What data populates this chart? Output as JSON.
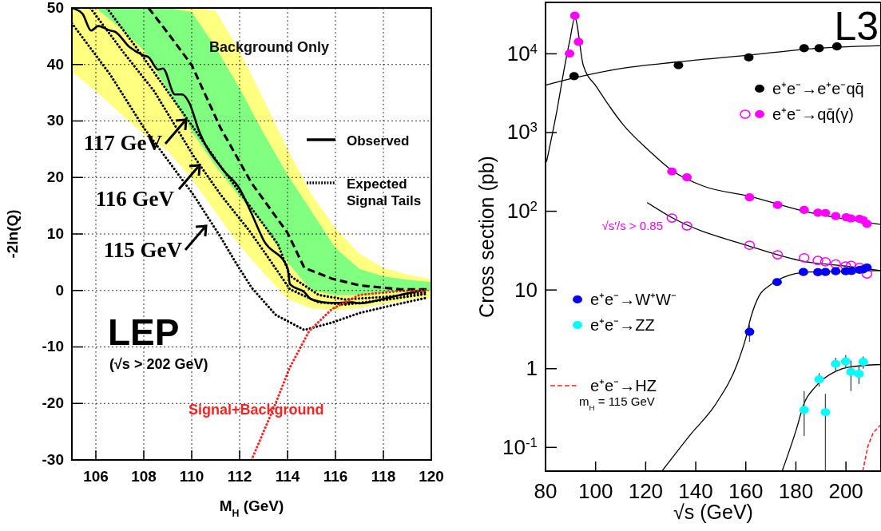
{
  "chart_data": [
    {
      "type": "line",
      "xlabel": "M$_{H}$ (GeV)",
      "ylabel": "-2ln(Q)",
      "xlim": [
        105,
        120
      ],
      "xticks": [
        106,
        108,
        110,
        112,
        114,
        116,
        118,
        120
      ],
      "ylim": [
        -30,
        50
      ],
      "yticks": [
        -30,
        -20,
        -10,
        0,
        10,
        20,
        30,
        40,
        50
      ],
      "grid": true,
      "legend": "right",
      "annotations": [
        "LEP",
        "(√s > 202 GeV)",
        "117 GeV",
        "116 GeV",
        "115 GeV"
      ],
      "series": [
        {
          "color": "#ffff80",
          "x": [
            105,
            106,
            107,
            108,
            109,
            110,
            111,
            112,
            113,
            114,
            115,
            116,
            117,
            118,
            119,
            120
          ],
          "lower": [
            38.7,
            35.3,
            31.4,
            27.7,
            24.7,
            19.8,
            13.8,
            8,
            3.1,
            -1.5,
            -3.2,
            -3.5,
            -3.1,
            -2.4,
            -1.7,
            -1.2
          ],
          "upper": [
            50,
            50,
            50,
            50,
            50,
            50,
            49.5,
            42.3,
            33.8,
            25,
            17,
            11,
            6.5,
            4,
            2.8,
            2
          ],
          "values": [
            null,
            null,
            null,
            null,
            null,
            null,
            null,
            null,
            null,
            null,
            null,
            null,
            null,
            null,
            null,
            null
          ]
        },
        {
          "color": "#80ff80",
          "x": [
            106,
            107,
            108,
            109,
            110,
            111,
            112,
            113,
            114,
            115,
            116,
            117,
            118,
            119,
            120
          ],
          "lower": [
            50,
            46.5,
            42.5,
            35.5,
            28.2,
            22,
            16.6,
            11.5,
            5,
            0,
            -0.8,
            -0.8,
            -0.4,
            -0.2,
            0
          ],
          "upper": [
            50,
            50,
            50,
            50,
            49.3,
            43,
            35.8,
            27.8,
            20.5,
            14,
            7.5,
            3.8,
            2.5,
            1.9,
            1.5
          ],
          "values": [
            null,
            null,
            null,
            null,
            null,
            null,
            null,
            null,
            null,
            null,
            null,
            null,
            null,
            null,
            null
          ]
        },
        {
          "name": "Background Only",
          "color": "#000000",
          "line_style": "dashed",
          "x": [
            108.2,
            109,
            110,
            111.2,
            112.5,
            114,
            114.7,
            115.85,
            117,
            118.7,
            119.8
          ],
          "values": [
            50,
            45.6,
            39.9,
            28.8,
            19,
            10.2,
            4.0,
            2.1,
            0.9,
            0.2,
            0.2
          ]
        },
        {
          "name": "Expected Signal Tails",
          "color": "#000000",
          "line_style": "dotted",
          "x": [
            105,
            106.6,
            108,
            110.06,
            111.2,
            111.8,
            112.5,
            113.5,
            114.7,
            115.85,
            117,
            118.2,
            119.8
          ],
          "values": [
            47.3,
            38.2,
            28.8,
            17,
            9.5,
            5.2,
            0.5,
            -4.3,
            -7,
            -5.7,
            -4,
            -2.8,
            -1.3
          ]
        },
        {
          "color": "#000000",
          "line_style": "dotted",
          "x": [
            105.77,
            107.16,
            108.43,
            110.06,
            111.2,
            112.4,
            113,
            114.1,
            115.3,
            116.4,
            118.2,
            119.8
          ],
          "values": [
            50,
            42.1,
            35.3,
            23.9,
            17,
            10.6,
            7,
            0.2,
            -2.1,
            -2.5,
            -1.6,
            -0.6
          ]
        },
        {
          "color": "#000000",
          "line_style": "dotted",
          "x": [
            106.46,
            107.74,
            108.9,
            110.06,
            111.2,
            112.4,
            113.6,
            114.1,
            115.3,
            116.4,
            118.2,
            119.8
          ],
          "values": [
            50,
            42.7,
            35.8,
            28.9,
            22,
            15.1,
            8.2,
            2.6,
            -0.8,
            -1.6,
            -1.1,
            -0.3
          ]
        },
        {
          "name": "Observed",
          "color": "#000000",
          "line_style": "solid",
          "x": [
            105,
            105.44,
            105.8,
            106.1,
            106.6,
            106.8,
            107.4,
            108,
            108.2,
            108.6,
            108.8,
            109.3,
            109.6,
            109.9,
            110.3,
            111.3,
            112,
            112.5,
            113,
            114,
            114.1,
            114.7,
            115,
            115.85,
            116.7,
            117,
            117.9,
            118.7,
            119.5,
            119.8
          ],
          "values": [
            50,
            49,
            46,
            46.8,
            46,
            45.8,
            43.1,
            41.6,
            41.3,
            39.1,
            39.3,
            34.7,
            34.7,
            33.2,
            28.3,
            21.4,
            18,
            13.6,
            8.9,
            4,
            1.1,
            -0.3,
            -1.6,
            -2.2,
            -2.1,
            -2.3,
            -1.6,
            -0.8,
            -0.1,
            0.1
          ]
        },
        {
          "name": "Signal+Background",
          "color": "#ff2020",
          "line_style": "dotted",
          "x": [
            112.5,
            113.5,
            114.1,
            114.9,
            115.85,
            117,
            118.7,
            119.8
          ],
          "values": [
            -30,
            -20,
            -13.6,
            -7.2,
            -3.3,
            -0.8,
            -0.1,
            0
          ]
        }
      ]
    },
    {
      "type": "scatter",
      "xlabel": "√s (GeV)",
      "ylabel": "Cross section (pb)",
      "log": "y",
      "xlim": [
        80,
        214
      ],
      "xticks": [
        80,
        100,
        120,
        140,
        160,
        180,
        200
      ],
      "ylim": [
        0.05,
        45000
      ],
      "yticks": [
        {
          "value": 0.1,
          "label": "10$^{-1}$"
        },
        1,
        10,
        {
          "value": 100,
          "label": "10$^{2}$"
        },
        {
          "value": 1000,
          "label": "10$^{3}$"
        },
        {
          "value": 10000,
          "label": "10$^{4}$"
        }
      ],
      "legend": "right",
      "annotations": [
        "L3",
        "m$_{H}$ = 115 GeV"
      ],
      "series": [
        {
          "type": "line",
          "color": "#000000",
          "line_style": "solid",
          "x": [
            80,
            91,
            110,
            133,
            161,
            183,
            214
          ],
          "values": [
            4000,
            4900,
            6500,
            7900,
            9600,
            11400,
            12700
          ]
        },
        {
          "type": "line",
          "color": "#000000",
          "line_style": "solid",
          "x": [
            80.4,
            84.5,
            87.7,
            89.8,
            91.7,
            95.1,
            100.4,
            111,
            121.7,
            130.5,
            143,
            161.5,
            183.3,
            214
          ],
          "values": [
            424,
            1860,
            7100,
            15400,
            28700,
            7100,
            3800,
            1260,
            575,
            330,
            209,
            155,
            100,
            68
          ]
        },
        {
          "type": "line",
          "color": "#000000",
          "line_style": "solid",
          "x": [
            120.6,
            130.5,
            161.5,
            183.3,
            200,
            214
          ],
          "values": [
            129,
            83,
            36,
            23,
            20.1,
            17.6
          ]
        },
        {
          "type": "line",
          "color": "#000000",
          "line_style": "solid",
          "x": [
            126.5,
            137.6,
            148.2,
            156.7,
            159.9,
            162,
            165.2,
            169.5,
            174.8,
            185.4,
            214
          ],
          "values": [
            0.05,
            0.142,
            0.364,
            1.18,
            2.39,
            4.47,
            8.3,
            11.4,
            14.4,
            16.9,
            17.6
          ]
        },
        {
          "type": "line",
          "color": "#000000",
          "line_style": "solid",
          "x": [
            174.5,
            180.1,
            183.3,
            187.6,
            196,
            201.4,
            214
          ],
          "values": [
            0.05,
            0.166,
            0.364,
            0.58,
            0.93,
            1.05,
            1.13
          ]
        },
        {
          "type": "line",
          "name": "e⁺e⁻→HZ",
          "color": "#ff2020",
          "line_style": "dashed",
          "x": [
            206.7,
            208.8,
            210.9,
            214
          ],
          "values": [
            0.05,
            0.104,
            0.154,
            0.195
          ]
        },
        {
          "name": "e⁺e⁻→e⁺e⁻qq̄",
          "color": "#000000",
          "marker": "circle",
          "x": [
            91.4,
            133.1,
            161.2,
            183.3,
            189.3,
            196.4
          ],
          "values": [
            5200,
            7150,
            9000,
            11800,
            11800,
            12400
          ]
        },
        {
          "name": "√s′/s > 0.85",
          "color": "#ff00ff",
          "marker": "circle-open",
          "x": [
            130.5,
            136.5,
            161.5,
            172.7,
            183.3,
            188.8,
            191.8,
            195.9,
            199.9,
            202.1,
            205.4,
            208.4
          ],
          "values": [
            82,
            65,
            37,
            28,
            25.6,
            23.7,
            22.8,
            21.4,
            20.2,
            20.5,
            19.4,
            16
          ]
        },
        {
          "name": "e⁺e⁻→qq̄(γ)",
          "color": "#ff00ff",
          "marker": "circle",
          "x": [
            89.6,
            91.7,
            93.2,
            130.5,
            136.5,
            161.5,
            172.7,
            183.3,
            188.8,
            191.8,
            195.9,
            200.1,
            202,
            205.4,
            206.9,
            208.4
          ],
          "values": [
            10070,
            30500,
            14200,
            320,
            270,
            150,
            120,
            104,
            96,
            95,
            87,
            84,
            81,
            80,
            77,
            69
          ]
        },
        {
          "name": "e⁺e⁻→W⁺W⁻",
          "color": "#0000ee",
          "marker": "circle",
          "x": [
            161.5,
            172.5,
            183,
            188.8,
            191.8,
            195.9,
            199.9,
            202.2,
            205.4,
            206.9,
            208.4
          ],
          "values": [
            2.94,
            12.6,
            16.9,
            16.8,
            16.9,
            17.3,
            17.3,
            17.4,
            18,
            18.3,
            19.3
          ],
          "errors": [
            [
              2.2,
              3.6
            ],
            null,
            null,
            null,
            null,
            null,
            null,
            null,
            null,
            null,
            null
          ]
        },
        {
          "name": "e⁺e⁻→ZZ",
          "color": "#00ffff",
          "marker": "circle",
          "x": [
            183.3,
            189.3,
            191.8,
            195.9,
            199.9,
            202,
            205.2,
            206.9
          ],
          "values": [
            0.3,
            0.73,
            0.28,
            1.15,
            1.24,
            0.91,
            0.86,
            1.22
          ],
          "errors": [
            [
              0.14,
              0.52
            ],
            [
              0.59,
              0.88
            ],
            [
              0.05,
              0.48
            ],
            [
              0.9,
              1.38
            ],
            [
              1.02,
              1.49
            ],
            [
              0.52,
              1.27
            ],
            [
              0.64,
              1.09
            ],
            [
              1.0,
              1.43
            ]
          ]
        }
      ]
    }
  ]
}
